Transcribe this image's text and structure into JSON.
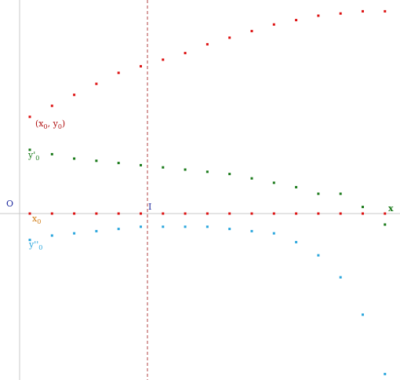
{
  "colors": {
    "curve_y": "#dd1111",
    "curve_y1": "#1a7a1a",
    "curve_y2": "#2aa6dd",
    "x_axis_dots": "#dd1111",
    "axis_line": "#c8c8c8",
    "vertical_guide": "#b04040",
    "label_origin": "#1e2a9e",
    "label_I": "#1e2a9e",
    "label_x": "#1a7a1a",
    "label_x0": "#d07a10",
    "label_xy0": "#b01010",
    "label_y1": "#1a7a1a",
    "label_y2": "#2aa6dd"
  },
  "labels": {
    "origin": "O",
    "I": "I",
    "x": "x",
    "x0_base": "x",
    "x0_sub": "0",
    "pt_open": "(x",
    "pt_sub1": "0",
    "pt_mid": ", y",
    "pt_sub2": "0",
    "pt_close": ")",
    "y1_base": "y'",
    "y1_sub": "0",
    "y2_base": "y''",
    "y2_sub": "0"
  },
  "chart_data": {
    "type": "scatter",
    "x": [
      0,
      1,
      2,
      3,
      4,
      5,
      6,
      7,
      8,
      9,
      10,
      11,
      12,
      13,
      14,
      15,
      16
    ],
    "xlim": [
      -0.5,
      17.5
    ],
    "ylim": [
      -7.4,
      9.5
    ],
    "series": [
      {
        "key": "y",
        "values": [
          4.4,
          4.9,
          5.4,
          5.9,
          6.4,
          6.7,
          7.0,
          7.3,
          7.7,
          8.0,
          8.3,
          8.6,
          8.8,
          9.0,
          9.1,
          9.2,
          9.2
        ],
        "color_key": "curve_y"
      },
      {
        "key": "y1",
        "values": [
          2.9,
          2.7,
          2.5,
          2.4,
          2.3,
          2.2,
          2.1,
          2.0,
          1.9,
          1.8,
          1.6,
          1.4,
          1.2,
          0.9,
          0.9,
          0.3,
          -0.5
        ],
        "color_key": "curve_y1"
      },
      {
        "key": "y2",
        "values": [
          -1.2,
          -1.0,
          -0.9,
          -0.8,
          -0.7,
          -0.6,
          -0.6,
          -0.6,
          -0.6,
          -0.7,
          -0.8,
          -0.9,
          -1.3,
          -1.9,
          -2.9,
          -4.6,
          -7.3
        ],
        "color_key": "curve_y2"
      },
      {
        "key": "axis",
        "values": [
          0,
          0,
          0,
          0,
          0,
          0,
          0,
          0,
          0,
          0,
          0,
          0,
          0,
          0,
          0,
          0,
          0
        ],
        "color_key": "x_axis_dots"
      }
    ],
    "x0_index": 0,
    "I_index": 5.4,
    "vertical_guide_x": 5.4
  }
}
